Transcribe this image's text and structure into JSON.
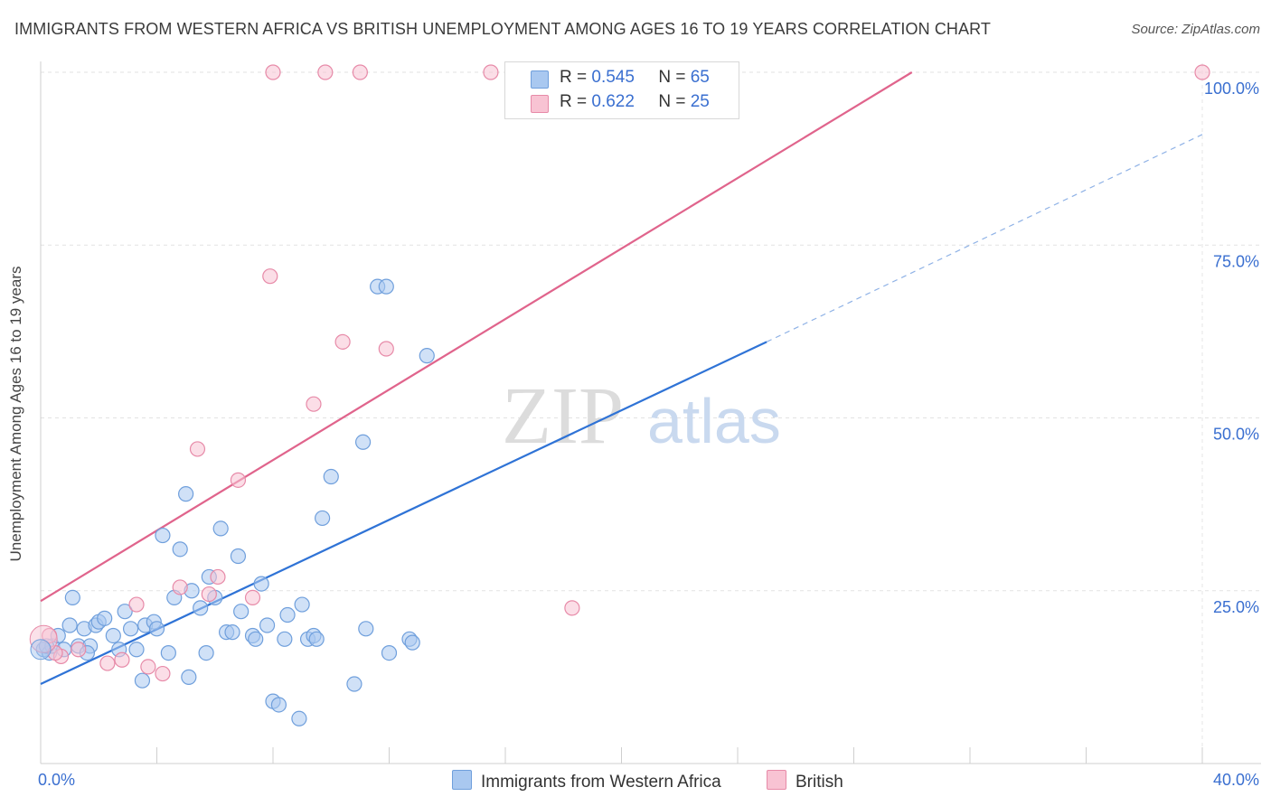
{
  "title": "IMMIGRANTS FROM WESTERN AFRICA VS BRITISH UNEMPLOYMENT AMONG AGES 16 TO 19 YEARS CORRELATION CHART",
  "source": "Source: ZipAtlas.com",
  "watermark": {
    "zip": "ZIP",
    "atlas": "atlas"
  },
  "legend": {
    "rows": [
      {
        "r_label": "R =",
        "r_value": "0.545",
        "n_label": "N =",
        "n_value": "65",
        "color": "#a9c8f0",
        "border": "#6f9fdc"
      },
      {
        "r_label": "R =",
        "r_value": "0.622",
        "n_label": "N =",
        "n_value": "25",
        "color": "#f8c3d3",
        "border": "#e78aa8"
      }
    ]
  },
  "bottom_legend": [
    {
      "label": "Immigrants from Western Africa",
      "color": "#a9c8f0",
      "border": "#6f9fdc"
    },
    {
      "label": "British",
      "color": "#f8c3d3",
      "border": "#e78aa8"
    }
  ],
  "chart_data": {
    "type": "scatter",
    "xlabel": "",
    "ylabel": "Unemployment Among Ages 16 to 19 years",
    "xlim": [
      0,
      40
    ],
    "ylim": [
      0,
      100
    ],
    "x_ticks": [
      "0.0%",
      "40.0%"
    ],
    "y_ticks": [
      {
        "value": 25,
        "label": "25.0%"
      },
      {
        "value": 50,
        "label": "50.0%"
      },
      {
        "value": 75,
        "label": "75.0%"
      },
      {
        "value": 100,
        "label": "100.0%"
      }
    ],
    "grid": true,
    "legend_position": "top-center",
    "series": [
      {
        "name": "Immigrants from Western Africa",
        "color": "#6f9fdc",
        "fill": "#a9c8f0",
        "trend": {
          "x0": 0,
          "y0": 11.5,
          "x1": 25,
          "y1": 61,
          "dashed_to_x": 40,
          "dashed_to_y": 91
        },
        "points": [
          [
            0.1,
            16.5
          ],
          [
            0.3,
            16
          ],
          [
            0.4,
            17
          ],
          [
            0.6,
            18.5
          ],
          [
            0.8,
            16.5
          ],
          [
            1.0,
            20
          ],
          [
            1.1,
            24
          ],
          [
            1.3,
            17
          ],
          [
            1.5,
            19.5
          ],
          [
            1.7,
            17
          ],
          [
            1.9,
            20
          ],
          [
            2.0,
            20.5
          ],
          [
            2.2,
            21
          ],
          [
            2.5,
            18.5
          ],
          [
            2.7,
            16.5
          ],
          [
            2.9,
            22
          ],
          [
            3.1,
            19.5
          ],
          [
            3.3,
            16.5
          ],
          [
            3.5,
            12
          ],
          [
            3.6,
            20
          ],
          [
            3.9,
            20.5
          ],
          [
            4.0,
            19.5
          ],
          [
            4.2,
            33
          ],
          [
            4.4,
            16
          ],
          [
            4.6,
            24
          ],
          [
            4.8,
            31
          ],
          [
            5.0,
            39
          ],
          [
            5.1,
            12.5
          ],
          [
            5.2,
            25
          ],
          [
            5.5,
            22.5
          ],
          [
            5.7,
            16
          ],
          [
            5.8,
            27
          ],
          [
            6.0,
            24
          ],
          [
            6.2,
            34
          ],
          [
            6.4,
            19
          ],
          [
            6.6,
            19
          ],
          [
            6.8,
            30
          ],
          [
            6.9,
            22
          ],
          [
            7.3,
            18.5
          ],
          [
            7.4,
            18
          ],
          [
            7.6,
            26
          ],
          [
            7.8,
            20
          ],
          [
            8.0,
            9
          ],
          [
            8.2,
            8.5
          ],
          [
            8.4,
            18
          ],
          [
            8.5,
            21.5
          ],
          [
            8.9,
            6.5
          ],
          [
            9.0,
            23
          ],
          [
            9.2,
            18
          ],
          [
            9.4,
            18.5
          ],
          [
            9.5,
            18
          ],
          [
            9.7,
            35.5
          ],
          [
            10.0,
            41.5
          ],
          [
            10.8,
            11.5
          ],
          [
            11.1,
            46.5
          ],
          [
            11.2,
            19.5
          ],
          [
            11.6,
            69
          ],
          [
            11.9,
            69
          ],
          [
            12.0,
            16
          ],
          [
            12.7,
            18
          ],
          [
            12.8,
            17.5
          ],
          [
            13.3,
            59
          ],
          [
            22.1,
            94.5
          ],
          [
            0.2,
            17
          ],
          [
            1.6,
            16
          ]
        ]
      },
      {
        "name": "British",
        "color": "#e78aa8",
        "fill": "#f8c3d3",
        "trend": {
          "x0": 0,
          "y0": 23.5,
          "x1": 30,
          "y1": 100
        },
        "points": [
          [
            0.3,
            18.5
          ],
          [
            0.7,
            15.5
          ],
          [
            1.3,
            16.5
          ],
          [
            2.3,
            14.5
          ],
          [
            2.8,
            15
          ],
          [
            3.3,
            23
          ],
          [
            3.7,
            14
          ],
          [
            4.2,
            13
          ],
          [
            4.8,
            25.5
          ],
          [
            5.4,
            45.5
          ],
          [
            5.8,
            24.5
          ],
          [
            6.1,
            27
          ],
          [
            6.8,
            41
          ],
          [
            7.3,
            24
          ],
          [
            7.9,
            70.5
          ],
          [
            8.0,
            100
          ],
          [
            9.4,
            52
          ],
          [
            9.8,
            100
          ],
          [
            10.4,
            61
          ],
          [
            11.0,
            100
          ],
          [
            11.9,
            60
          ],
          [
            15.5,
            100
          ],
          [
            18.3,
            22.5
          ],
          [
            40.0,
            100
          ],
          [
            0.5,
            16
          ]
        ]
      }
    ]
  }
}
